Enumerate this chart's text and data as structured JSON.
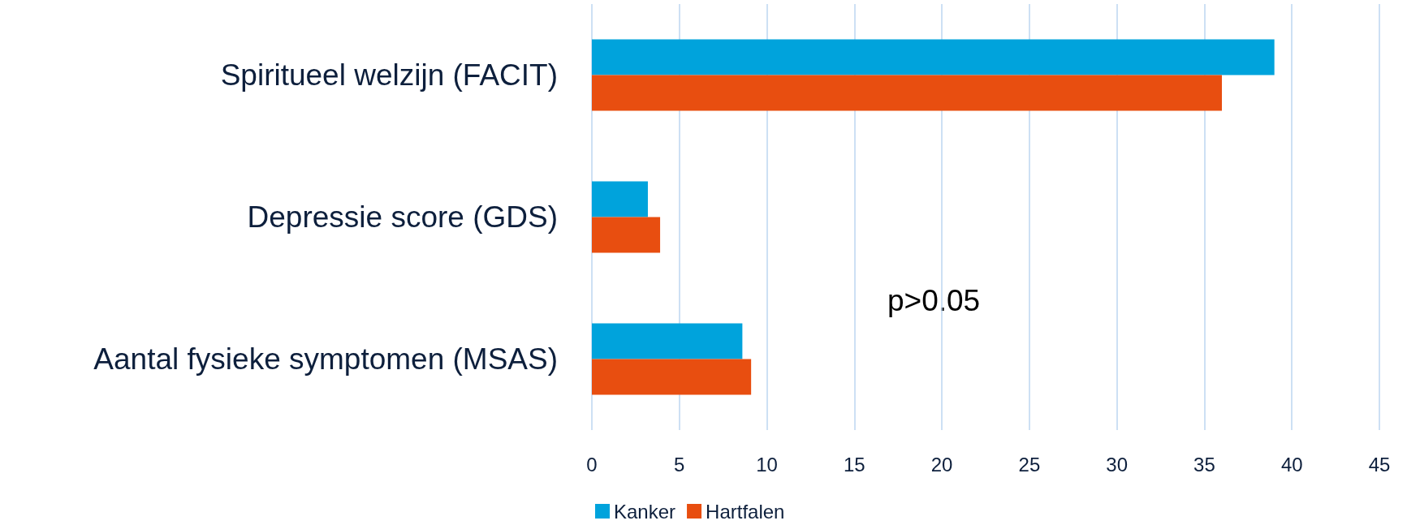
{
  "chart_data": {
    "type": "bar",
    "orientation": "horizontal",
    "categories": [
      "Spiritueel welzijn (FACIT)",
      "Depressie score (GDS)",
      "Aantal fysieke symptomen (MSAS)"
    ],
    "series": [
      {
        "name": "Kanker",
        "color": "#00a3dc",
        "values": [
          39,
          3.2,
          8.6
        ]
      },
      {
        "name": "Hartfalen",
        "color": "#e84e10",
        "values": [
          36,
          3.9,
          9.1
        ]
      }
    ],
    "xlim": [
      0,
      45
    ],
    "xticks": [
      0,
      5,
      10,
      15,
      20,
      25,
      30,
      35,
      40,
      45
    ],
    "grid": "x",
    "legend": "bottom",
    "annotations": [
      "p>0.05"
    ]
  }
}
